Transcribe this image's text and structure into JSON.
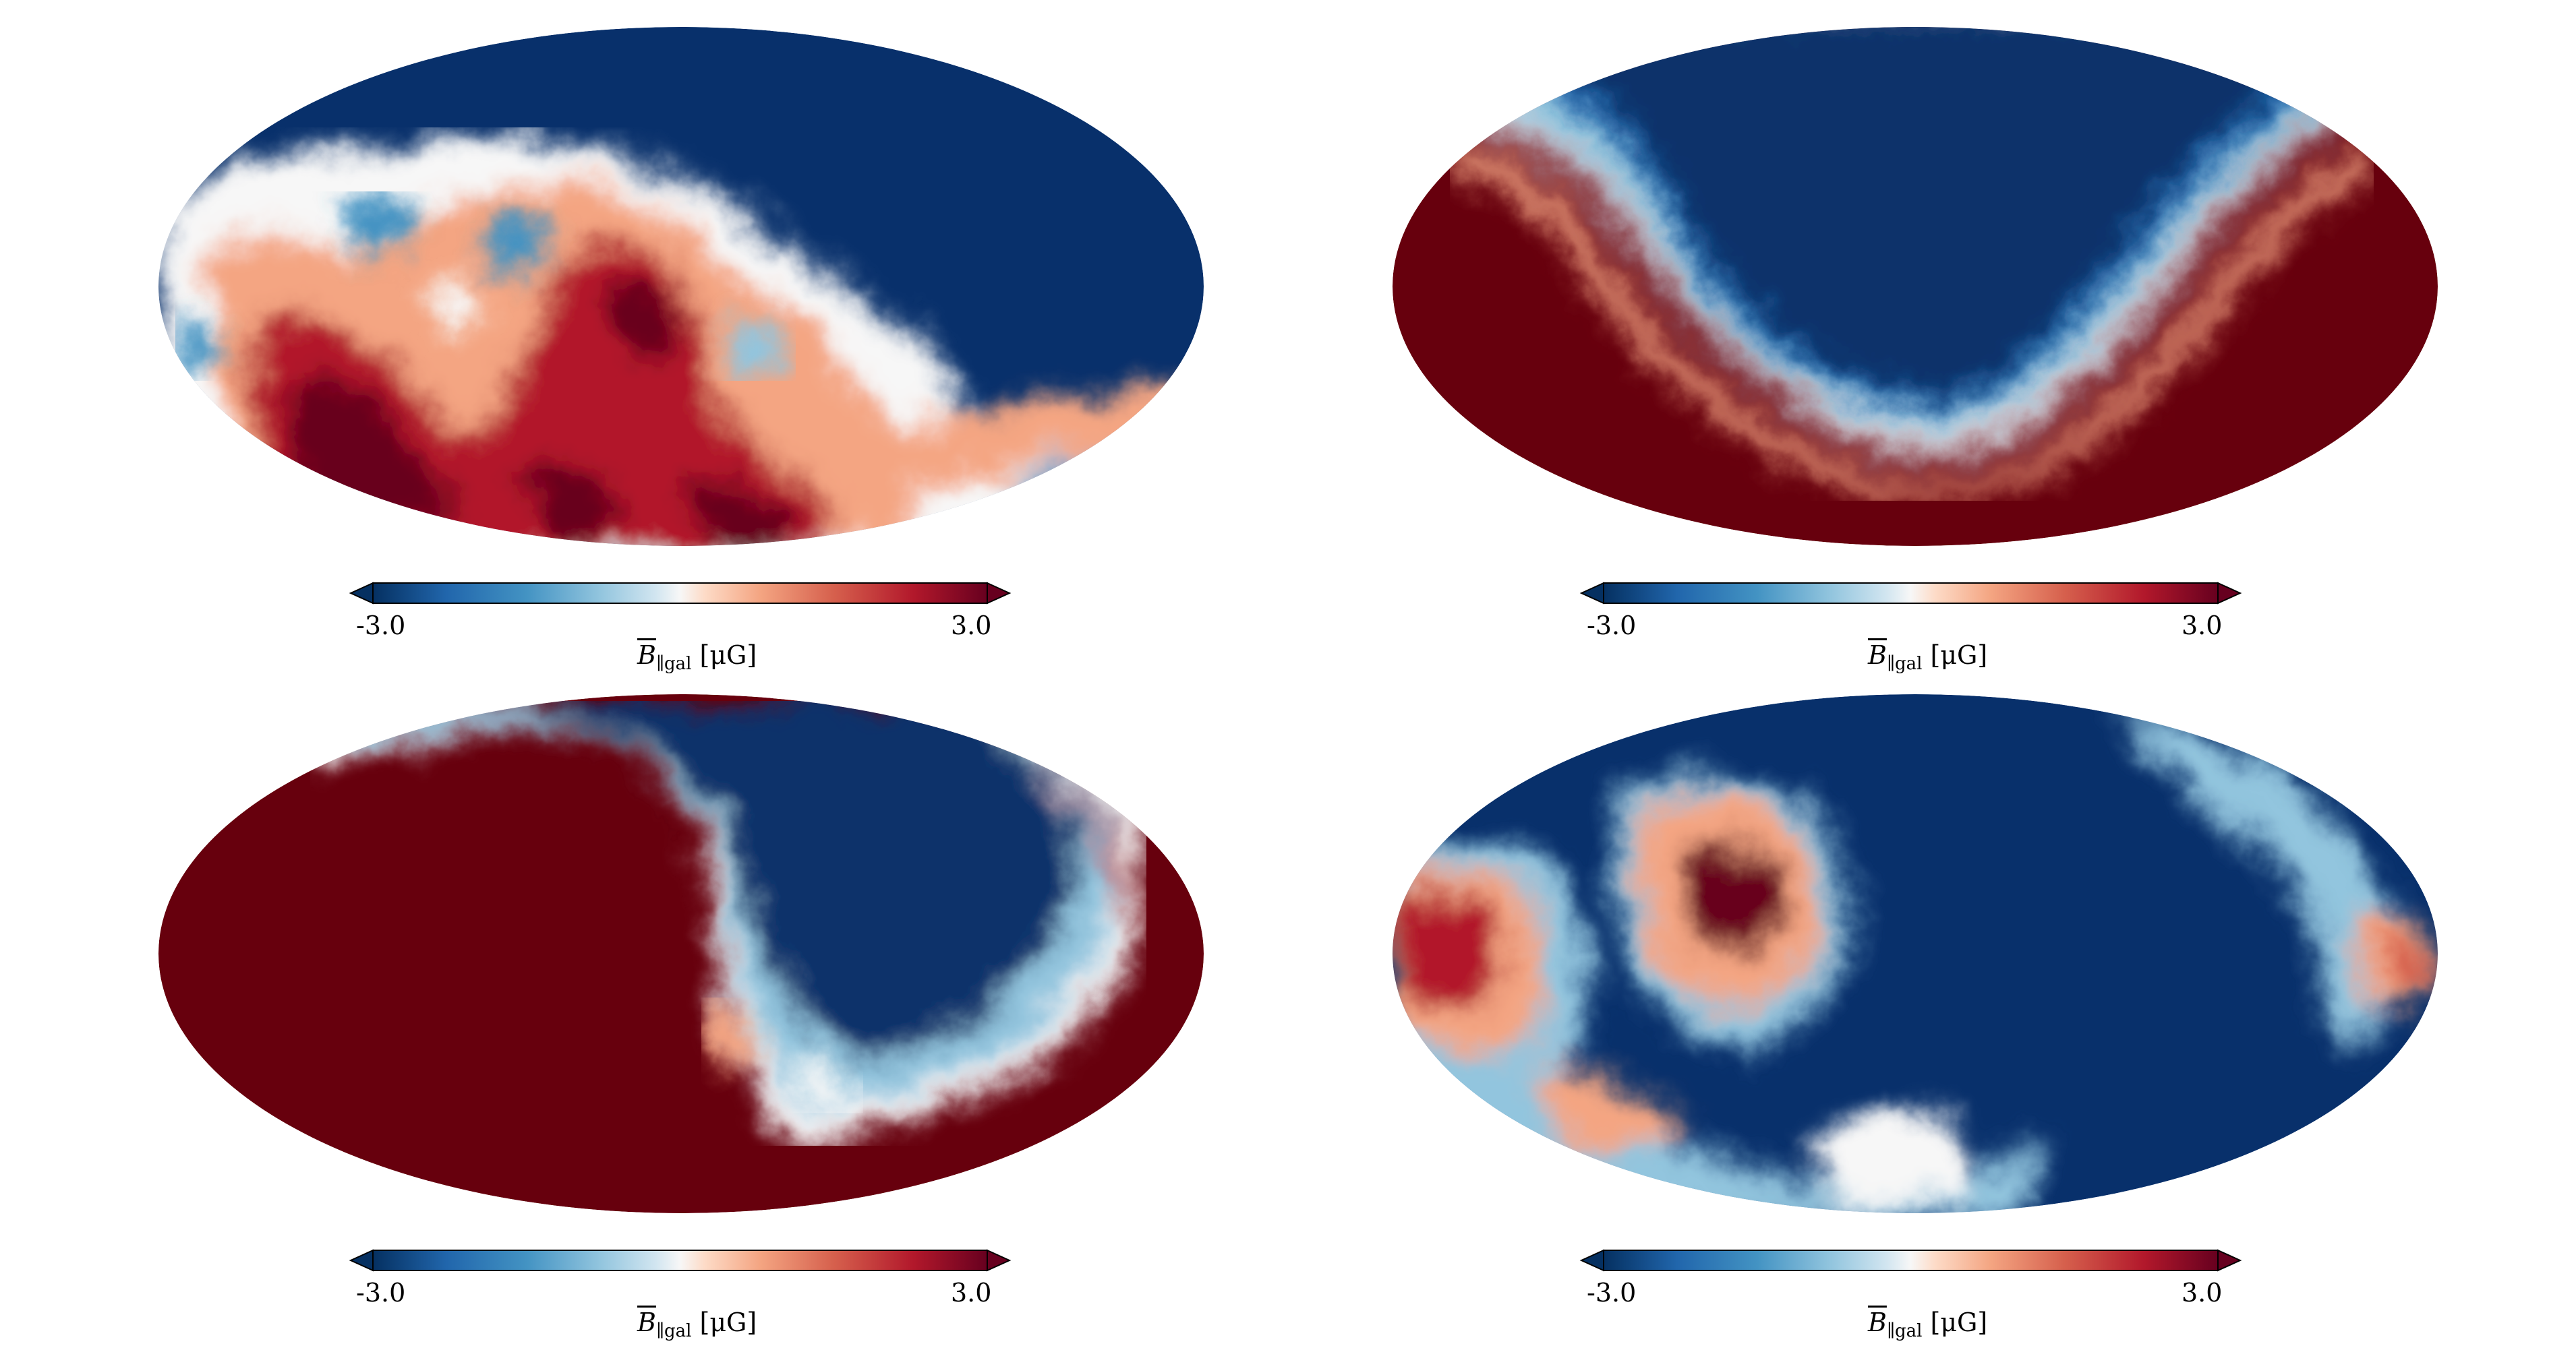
{
  "colors": {
    "blue": "#08306b",
    "red": "#67000d",
    "white": "#f7f7f7"
  },
  "colormap": "RdBu_r",
  "panels": [
    {
      "id": "top-left",
      "colorbar": {
        "min_label": "-3.0",
        "max_label": "3.0",
        "label_sym": "B",
        "label_sub": "∥gal",
        "label_unit": "[μG]"
      }
    },
    {
      "id": "top-right",
      "colorbar": {
        "min_label": "-3.0",
        "max_label": "3.0",
        "label_sym": "B",
        "label_sub": "∥gal",
        "label_unit": "[μG]"
      }
    },
    {
      "id": "bottom-left",
      "colorbar": {
        "min_label": "-3.0",
        "max_label": "3.0",
        "label_sym": "B",
        "label_sub": "∥gal",
        "label_unit": "[μG]"
      }
    },
    {
      "id": "bottom-right",
      "colorbar": {
        "min_label": "-3.0",
        "max_label": "3.0",
        "label_sym": "B",
        "label_sub": "∥gal",
        "label_unit": "[μG]"
      }
    }
  ]
}
